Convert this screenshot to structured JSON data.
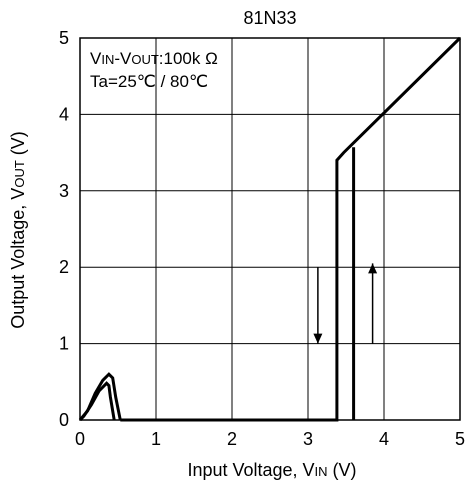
{
  "chart_data": {
    "type": "line",
    "title": "81N33",
    "xlabel": {
      "main": "Input Voltage, V",
      "sub": "IN",
      "unit": " (V)"
    },
    "ylabel": {
      "main": "Output Voltage, V",
      "sub": "OUT",
      "unit": " (V)"
    },
    "xlim": [
      0,
      5
    ],
    "ylim": [
      0,
      5
    ],
    "x_ticks": [
      "0",
      "1",
      "2",
      "3",
      "4",
      "5"
    ],
    "y_ticks": [
      "0",
      "1",
      "2",
      "3",
      "4",
      "5"
    ],
    "grid": true,
    "annotations": {
      "line1_a": "V",
      "line1_a_sub": "IN",
      "line1_b": "-V",
      "line1_b_sub": "OUT",
      "line1_c": ":100k Ω",
      "line2": "Ta=25℃ / 80℃"
    },
    "series": [
      {
        "points": [
          [
            0,
            0
          ],
          [
            0.05,
            0.05
          ],
          [
            0.15,
            0.2
          ],
          [
            0.25,
            0.38
          ],
          [
            0.35,
            0.48
          ],
          [
            0.38,
            0.45
          ],
          [
            0.4,
            0.3
          ],
          [
            0.45,
            0
          ]
        ]
      },
      {
        "points": [
          [
            0,
            0
          ],
          [
            0.1,
            0.12
          ],
          [
            0.2,
            0.35
          ],
          [
            0.3,
            0.52
          ],
          [
            0.38,
            0.6
          ],
          [
            0.43,
            0.55
          ],
          [
            0.47,
            0.3
          ],
          [
            0.53,
            0
          ]
        ]
      },
      {
        "points": [
          [
            0.53,
            0
          ],
          [
            3.38,
            0
          ],
          [
            3.38,
            3.4
          ],
          [
            3.47,
            3.5
          ],
          [
            5,
            5
          ]
        ]
      },
      {
        "points": [
          [
            3.6,
            0
          ],
          [
            3.6,
            3.57
          ]
        ]
      }
    ],
    "arrows": [
      {
        "x": 3.13,
        "from": 2.0,
        "to": 1.0,
        "direction": "down"
      },
      {
        "x": 3.85,
        "from": 1.0,
        "to": 2.05,
        "direction": "up"
      }
    ]
  }
}
